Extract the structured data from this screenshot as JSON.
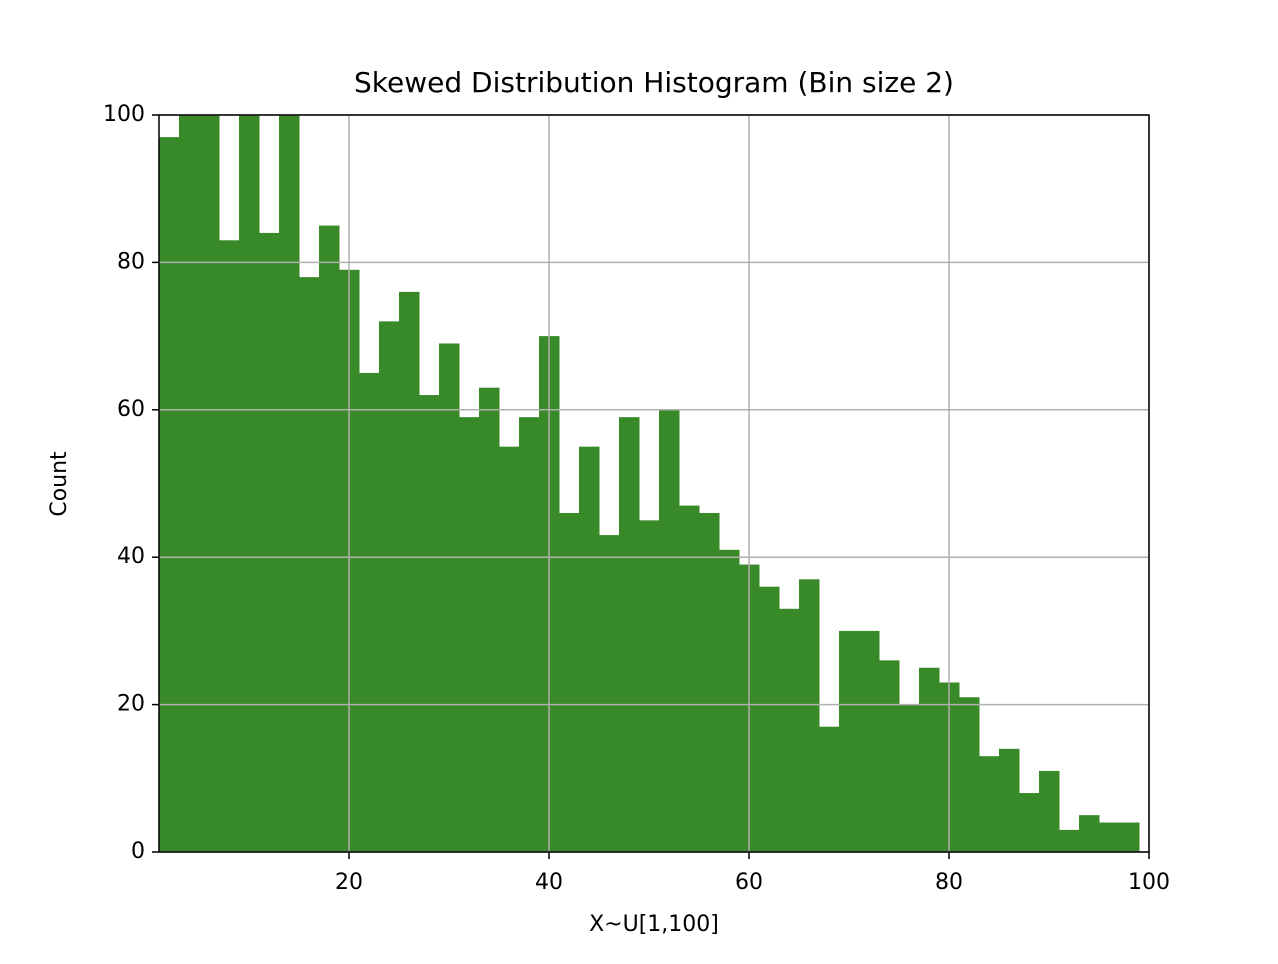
{
  "chart_data": {
    "type": "histogram",
    "title": "Skewed Distribution Histogram (Bin size 2)",
    "x_label": "X~U[1,100]",
    "y_label": "Count",
    "bins": [
      1,
      3,
      5,
      7,
      9,
      11,
      13,
      15,
      17,
      19,
      21,
      23,
      25,
      27,
      29,
      31,
      33,
      35,
      37,
      39,
      41,
      43,
      45,
      47,
      49,
      51,
      53,
      55,
      57,
      59,
      61,
      63,
      65,
      67,
      69,
      71,
      73,
      75,
      77,
      79,
      81,
      83,
      85,
      87,
      89,
      91,
      93,
      95,
      97,
      99
    ],
    "values": [
      97,
      110,
      106,
      83,
      102,
      84,
      104,
      78,
      85,
      79,
      65,
      72,
      76,
      62,
      69,
      59,
      63,
      55,
      59,
      70,
      46,
      55,
      43,
      59,
      45,
      60,
      47,
      46,
      41,
      39,
      36,
      33,
      37,
      17,
      30,
      30,
      26,
      20,
      25,
      23,
      21,
      13,
      14,
      8,
      11,
      3,
      5,
      4,
      4
    ],
    "color": "#388a29",
    "xlim": [
      1,
      100
    ],
    "xticks": [
      20,
      40,
      60,
      80,
      100
    ],
    "ylim": [
      0,
      100
    ],
    "yticks": [
      0,
      20,
      40,
      60,
      80,
      100
    ],
    "grid": true
  }
}
